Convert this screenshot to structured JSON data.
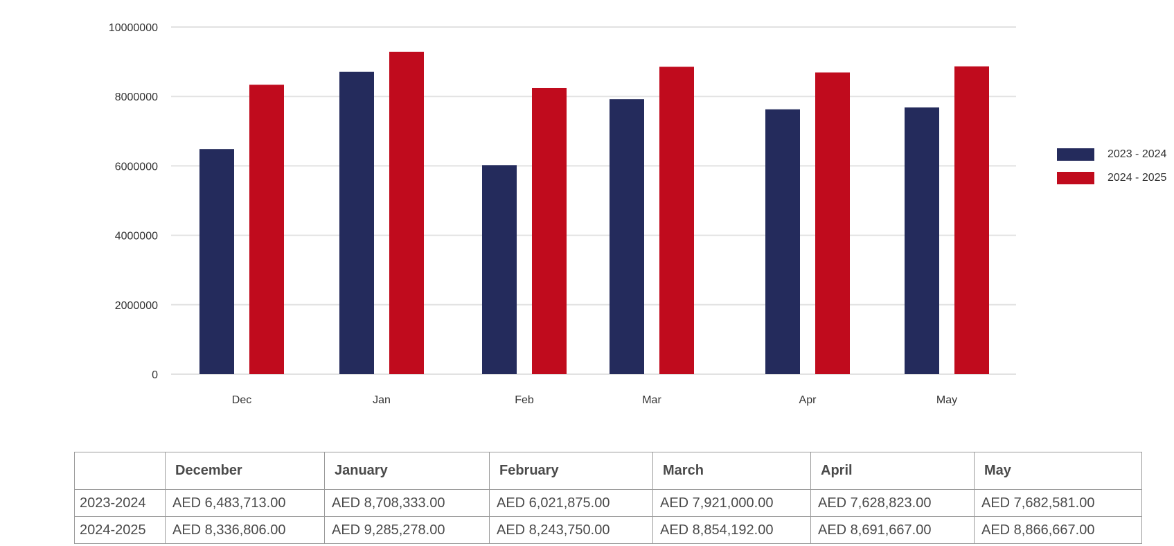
{
  "chart_data": {
    "type": "bar",
    "categories": [
      "Dec",
      "Jan",
      "Feb",
      "Mar",
      "Apr",
      "May"
    ],
    "series": [
      {
        "name": "2023 - 2024",
        "color": "#242b5c",
        "values": [
          6483713,
          8708333,
          6021875,
          7921000,
          7628823,
          7682581
        ]
      },
      {
        "name": "2024 - 2025",
        "color": "#c00b1d",
        "values": [
          8336806,
          9285278,
          8243750,
          8854192,
          8691667,
          8866667
        ]
      }
    ],
    "y_ticks": [
      "0",
      "2000000",
      "4000000",
      "6000000",
      "8000000",
      "10000000"
    ],
    "ylim": [
      0,
      10000000
    ],
    "grid": true,
    "legend_position": "right",
    "title": "",
    "xlabel": "",
    "ylabel": ""
  },
  "table": {
    "corner": "",
    "headers": [
      "December",
      "January",
      "February",
      "March",
      "April",
      "May"
    ],
    "rows": [
      {
        "label": "2023-2024",
        "cells": [
          "AED 6,483,713.00",
          "AED 8,708,333.00",
          "AED 6,021,875.00",
          "AED 7,921,000.00",
          "AED 7,628,823.00",
          "AED 7,682,581.00"
        ]
      },
      {
        "label": "2024-2025",
        "cells": [
          "AED 8,336,806.00",
          "AED 9,285,278.00",
          "AED 8,243,750.00",
          "AED 8,854,192.00",
          "AED 8,691,667.00",
          "AED 8,866,667.00"
        ]
      }
    ]
  }
}
